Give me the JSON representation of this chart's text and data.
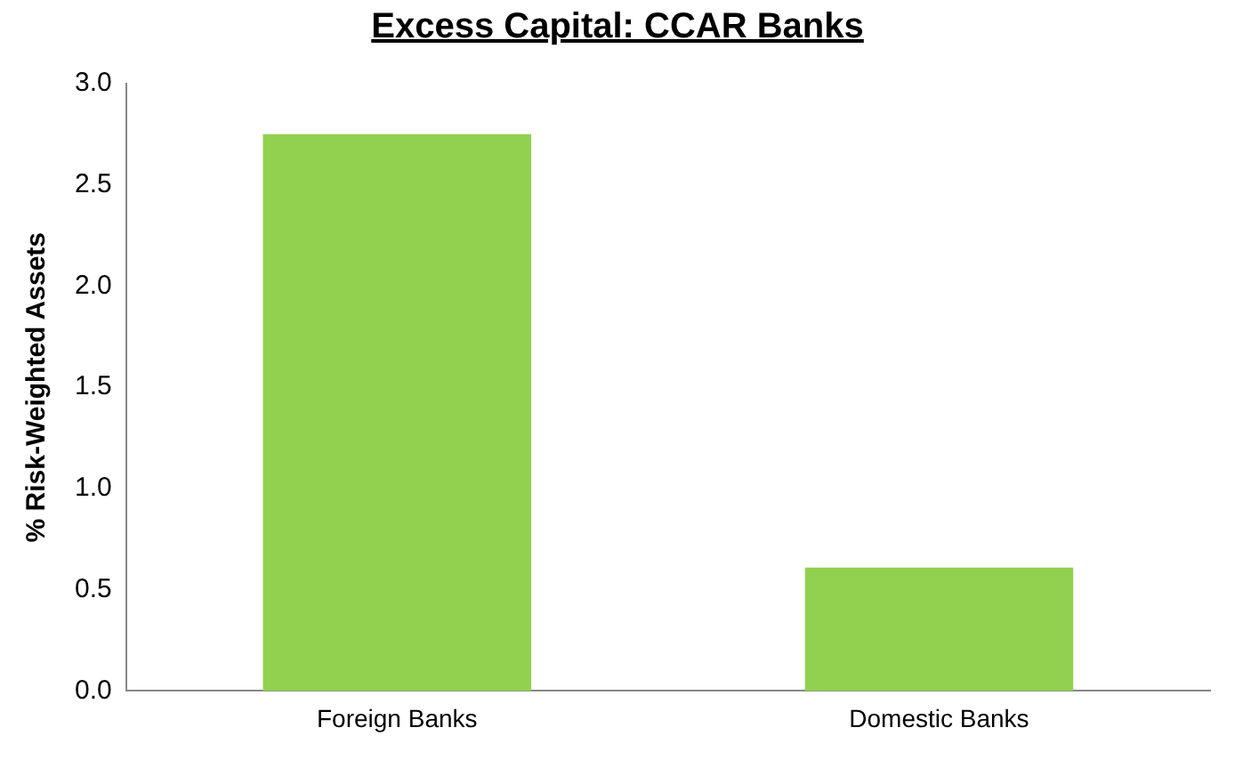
{
  "chart_data": {
    "type": "bar",
    "title": "Excess Capital: CCAR Banks",
    "ylabel": "% Risk-Weighted Assets",
    "categories": [
      "Foreign Banks",
      "Domestic Banks"
    ],
    "values": [
      2.75,
      0.61
    ],
    "color": "#92d050",
    "ylim": [
      0,
      3
    ],
    "yticks": [
      {
        "value": 0,
        "label": "0.0"
      },
      {
        "value": 0.5,
        "label": "0.5"
      },
      {
        "value": 1,
        "label": "1.0"
      },
      {
        "value": 1.5,
        "label": "1.5"
      },
      {
        "value": 2,
        "label": "2.0"
      },
      {
        "value": 2.5,
        "label": "2.5"
      },
      {
        "value": 3,
        "label": "3.0"
      }
    ],
    "grid": false,
    "legend": false
  }
}
